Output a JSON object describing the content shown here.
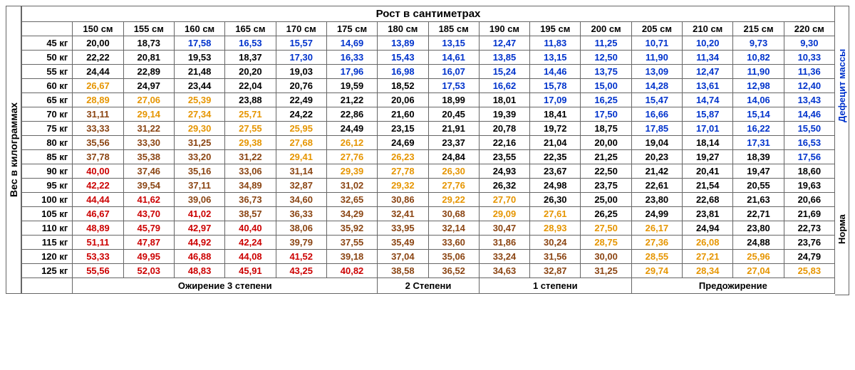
{
  "labels": {
    "title": "Рост в сантиметрах",
    "yAxis": "Вес в килограммах",
    "rightTop": "Дефецит массы",
    "rightBottom": "Норма",
    "footer": [
      "Ожирение 3 степени",
      "2 Степени",
      "1 степени",
      "Предожирение"
    ]
  },
  "colors": {
    "black": "#000000",
    "blue": "#0033cc",
    "yellow": "#e69500",
    "brown": "#8b4513",
    "red": "#cc0000"
  },
  "heightUnit": "см",
  "weightUnit": "кг",
  "heights": [
    150,
    155,
    160,
    165,
    170,
    175,
    180,
    185,
    190,
    195,
    200,
    205,
    210,
    215,
    220
  ],
  "weights": [
    45,
    50,
    55,
    60,
    65,
    70,
    75,
    80,
    85,
    90,
    95,
    100,
    105,
    110,
    115,
    120,
    125
  ],
  "cells": [
    [
      [
        "20,00",
        "black"
      ],
      [
        "18,73",
        "black"
      ],
      [
        "17,58",
        "blue"
      ],
      [
        "16,53",
        "blue"
      ],
      [
        "15,57",
        "blue"
      ],
      [
        "14,69",
        "blue"
      ],
      [
        "13,89",
        "blue"
      ],
      [
        "13,15",
        "blue"
      ],
      [
        "12,47",
        "blue"
      ],
      [
        "11,83",
        "blue"
      ],
      [
        "11,25",
        "blue"
      ],
      [
        "10,71",
        "blue"
      ],
      [
        "10,20",
        "blue"
      ],
      [
        "9,73",
        "blue"
      ],
      [
        "9,30",
        "blue"
      ]
    ],
    [
      [
        "22,22",
        "black"
      ],
      [
        "20,81",
        "black"
      ],
      [
        "19,53",
        "black"
      ],
      [
        "18,37",
        "black"
      ],
      [
        "17,30",
        "blue"
      ],
      [
        "16,33",
        "blue"
      ],
      [
        "15,43",
        "blue"
      ],
      [
        "14,61",
        "blue"
      ],
      [
        "13,85",
        "blue"
      ],
      [
        "13,15",
        "blue"
      ],
      [
        "12,50",
        "blue"
      ],
      [
        "11,90",
        "blue"
      ],
      [
        "11,34",
        "blue"
      ],
      [
        "10,82",
        "blue"
      ],
      [
        "10,33",
        "blue"
      ]
    ],
    [
      [
        "24,44",
        "black"
      ],
      [
        "22,89",
        "black"
      ],
      [
        "21,48",
        "black"
      ],
      [
        "20,20",
        "black"
      ],
      [
        "19,03",
        "black"
      ],
      [
        "17,96",
        "blue"
      ],
      [
        "16,98",
        "blue"
      ],
      [
        "16,07",
        "blue"
      ],
      [
        "15,24",
        "blue"
      ],
      [
        "14,46",
        "blue"
      ],
      [
        "13,75",
        "blue"
      ],
      [
        "13,09",
        "blue"
      ],
      [
        "12,47",
        "blue"
      ],
      [
        "11,90",
        "blue"
      ],
      [
        "11,36",
        "blue"
      ]
    ],
    [
      [
        "26,67",
        "yellow"
      ],
      [
        "24,97",
        "black"
      ],
      [
        "23,44",
        "black"
      ],
      [
        "22,04",
        "black"
      ],
      [
        "20,76",
        "black"
      ],
      [
        "19,59",
        "black"
      ],
      [
        "18,52",
        "black"
      ],
      [
        "17,53",
        "blue"
      ],
      [
        "16,62",
        "blue"
      ],
      [
        "15,78",
        "blue"
      ],
      [
        "15,00",
        "blue"
      ],
      [
        "14,28",
        "blue"
      ],
      [
        "13,61",
        "blue"
      ],
      [
        "12,98",
        "blue"
      ],
      [
        "12,40",
        "blue"
      ]
    ],
    [
      [
        "28,89",
        "yellow"
      ],
      [
        "27,06",
        "yellow"
      ],
      [
        "25,39",
        "yellow"
      ],
      [
        "23,88",
        "black"
      ],
      [
        "22,49",
        "black"
      ],
      [
        "21,22",
        "black"
      ],
      [
        "20,06",
        "black"
      ],
      [
        "18,99",
        "black"
      ],
      [
        "18,01",
        "black"
      ],
      [
        "17,09",
        "blue"
      ],
      [
        "16,25",
        "blue"
      ],
      [
        "15,47",
        "blue"
      ],
      [
        "14,74",
        "blue"
      ],
      [
        "14,06",
        "blue"
      ],
      [
        "13,43",
        "blue"
      ]
    ],
    [
      [
        "31,11",
        "brown"
      ],
      [
        "29,14",
        "yellow"
      ],
      [
        "27,34",
        "yellow"
      ],
      [
        "25,71",
        "yellow"
      ],
      [
        "24,22",
        "black"
      ],
      [
        "22,86",
        "black"
      ],
      [
        "21,60",
        "black"
      ],
      [
        "20,45",
        "black"
      ],
      [
        "19,39",
        "black"
      ],
      [
        "18,41",
        "black"
      ],
      [
        "17,50",
        "blue"
      ],
      [
        "16,66",
        "blue"
      ],
      [
        "15,87",
        "blue"
      ],
      [
        "15,14",
        "blue"
      ],
      [
        "14,46",
        "blue"
      ]
    ],
    [
      [
        "33,33",
        "brown"
      ],
      [
        "31,22",
        "brown"
      ],
      [
        "29,30",
        "yellow"
      ],
      [
        "27,55",
        "yellow"
      ],
      [
        "25,95",
        "yellow"
      ],
      [
        "24,49",
        "black"
      ],
      [
        "23,15",
        "black"
      ],
      [
        "21,91",
        "black"
      ],
      [
        "20,78",
        "black"
      ],
      [
        "19,72",
        "black"
      ],
      [
        "18,75",
        "black"
      ],
      [
        "17,85",
        "blue"
      ],
      [
        "17,01",
        "blue"
      ],
      [
        "16,22",
        "blue"
      ],
      [
        "15,50",
        "blue"
      ]
    ],
    [
      [
        "35,56",
        "brown"
      ],
      [
        "33,30",
        "brown"
      ],
      [
        "31,25",
        "brown"
      ],
      [
        "29,38",
        "yellow"
      ],
      [
        "27,68",
        "yellow"
      ],
      [
        "26,12",
        "yellow"
      ],
      [
        "24,69",
        "black"
      ],
      [
        "23,37",
        "black"
      ],
      [
        "22,16",
        "black"
      ],
      [
        "21,04",
        "black"
      ],
      [
        "20,00",
        "black"
      ],
      [
        "19,04",
        "black"
      ],
      [
        "18,14",
        "black"
      ],
      [
        "17,31",
        "blue"
      ],
      [
        "16,53",
        "blue"
      ]
    ],
    [
      [
        "37,78",
        "brown"
      ],
      [
        "35,38",
        "brown"
      ],
      [
        "33,20",
        "brown"
      ],
      [
        "31,22",
        "brown"
      ],
      [
        "29,41",
        "yellow"
      ],
      [
        "27,76",
        "yellow"
      ],
      [
        "26,23",
        "yellow"
      ],
      [
        "24,84",
        "black"
      ],
      [
        "23,55",
        "black"
      ],
      [
        "22,35",
        "black"
      ],
      [
        "21,25",
        "black"
      ],
      [
        "20,23",
        "black"
      ],
      [
        "19,27",
        "black"
      ],
      [
        "18,39",
        "black"
      ],
      [
        "17,56",
        "blue"
      ]
    ],
    [
      [
        "40,00",
        "red"
      ],
      [
        "37,46",
        "brown"
      ],
      [
        "35,16",
        "brown"
      ],
      [
        "33,06",
        "brown"
      ],
      [
        "31,14",
        "brown"
      ],
      [
        "29,39",
        "yellow"
      ],
      [
        "27,78",
        "yellow"
      ],
      [
        "26,30",
        "yellow"
      ],
      [
        "24,93",
        "black"
      ],
      [
        "23,67",
        "black"
      ],
      [
        "22,50",
        "black"
      ],
      [
        "21,42",
        "black"
      ],
      [
        "20,41",
        "black"
      ],
      [
        "19,47",
        "black"
      ],
      [
        "18,60",
        "black"
      ]
    ],
    [
      [
        "42,22",
        "red"
      ],
      [
        "39,54",
        "brown"
      ],
      [
        "37,11",
        "brown"
      ],
      [
        "34,89",
        "brown"
      ],
      [
        "32,87",
        "brown"
      ],
      [
        "31,02",
        "brown"
      ],
      [
        "29,32",
        "yellow"
      ],
      [
        "27,76",
        "yellow"
      ],
      [
        "26,32",
        "black"
      ],
      [
        "24,98",
        "black"
      ],
      [
        "23,75",
        "black"
      ],
      [
        "22,61",
        "black"
      ],
      [
        "21,54",
        "black"
      ],
      [
        "20,55",
        "black"
      ],
      [
        "19,63",
        "black"
      ]
    ],
    [
      [
        "44,44",
        "red"
      ],
      [
        "41,62",
        "red"
      ],
      [
        "39,06",
        "brown"
      ],
      [
        "36,73",
        "brown"
      ],
      [
        "34,60",
        "brown"
      ],
      [
        "32,65",
        "brown"
      ],
      [
        "30,86",
        "brown"
      ],
      [
        "29,22",
        "yellow"
      ],
      [
        "27,70",
        "yellow"
      ],
      [
        "26,30",
        "black"
      ],
      [
        "25,00",
        "black"
      ],
      [
        "23,80",
        "black"
      ],
      [
        "22,68",
        "black"
      ],
      [
        "21,63",
        "black"
      ],
      [
        "20,66",
        "black"
      ]
    ],
    [
      [
        "46,67",
        "red"
      ],
      [
        "43,70",
        "red"
      ],
      [
        "41,02",
        "red"
      ],
      [
        "38,57",
        "brown"
      ],
      [
        "36,33",
        "brown"
      ],
      [
        "34,29",
        "brown"
      ],
      [
        "32,41",
        "brown"
      ],
      [
        "30,68",
        "brown"
      ],
      [
        "29,09",
        "yellow"
      ],
      [
        "27,61",
        "yellow"
      ],
      [
        "26,25",
        "black"
      ],
      [
        "24,99",
        "black"
      ],
      [
        "23,81",
        "black"
      ],
      [
        "22,71",
        "black"
      ],
      [
        "21,69",
        "black"
      ]
    ],
    [
      [
        "48,89",
        "red"
      ],
      [
        "45,79",
        "red"
      ],
      [
        "42,97",
        "red"
      ],
      [
        "40,40",
        "red"
      ],
      [
        "38,06",
        "brown"
      ],
      [
        "35,92",
        "brown"
      ],
      [
        "33,95",
        "brown"
      ],
      [
        "32,14",
        "brown"
      ],
      [
        "30,47",
        "brown"
      ],
      [
        "28,93",
        "yellow"
      ],
      [
        "27,50",
        "yellow"
      ],
      [
        "26,17",
        "yellow"
      ],
      [
        "24,94",
        "black"
      ],
      [
        "23,80",
        "black"
      ],
      [
        "22,73",
        "black"
      ]
    ],
    [
      [
        "51,11",
        "red"
      ],
      [
        "47,87",
        "red"
      ],
      [
        "44,92",
        "red"
      ],
      [
        "42,24",
        "red"
      ],
      [
        "39,79",
        "brown"
      ],
      [
        "37,55",
        "brown"
      ],
      [
        "35,49",
        "brown"
      ],
      [
        "33,60",
        "brown"
      ],
      [
        "31,86",
        "brown"
      ],
      [
        "30,24",
        "brown"
      ],
      [
        "28,75",
        "yellow"
      ],
      [
        "27,36",
        "yellow"
      ],
      [
        "26,08",
        "yellow"
      ],
      [
        "24,88",
        "black"
      ],
      [
        "23,76",
        "black"
      ]
    ],
    [
      [
        "53,33",
        "red"
      ],
      [
        "49,95",
        "red"
      ],
      [
        "46,88",
        "red"
      ],
      [
        "44,08",
        "red"
      ],
      [
        "41,52",
        "red"
      ],
      [
        "39,18",
        "brown"
      ],
      [
        "37,04",
        "brown"
      ],
      [
        "35,06",
        "brown"
      ],
      [
        "33,24",
        "brown"
      ],
      [
        "31,56",
        "brown"
      ],
      [
        "30,00",
        "brown"
      ],
      [
        "28,55",
        "yellow"
      ],
      [
        "27,21",
        "yellow"
      ],
      [
        "25,96",
        "yellow"
      ],
      [
        "24,79",
        "black"
      ]
    ],
    [
      [
        "55,56",
        "red"
      ],
      [
        "52,03",
        "red"
      ],
      [
        "48,83",
        "red"
      ],
      [
        "45,91",
        "red"
      ],
      [
        "43,25",
        "red"
      ],
      [
        "40,82",
        "red"
      ],
      [
        "38,58",
        "brown"
      ],
      [
        "36,52",
        "brown"
      ],
      [
        "34,63",
        "brown"
      ],
      [
        "32,87",
        "brown"
      ],
      [
        "31,25",
        "brown"
      ],
      [
        "29,74",
        "yellow"
      ],
      [
        "28,34",
        "yellow"
      ],
      [
        "27,04",
        "yellow"
      ],
      [
        "25,83",
        "yellow"
      ]
    ]
  ],
  "footerSpans": [
    6,
    2,
    3,
    4
  ],
  "rightSplit": 9
}
